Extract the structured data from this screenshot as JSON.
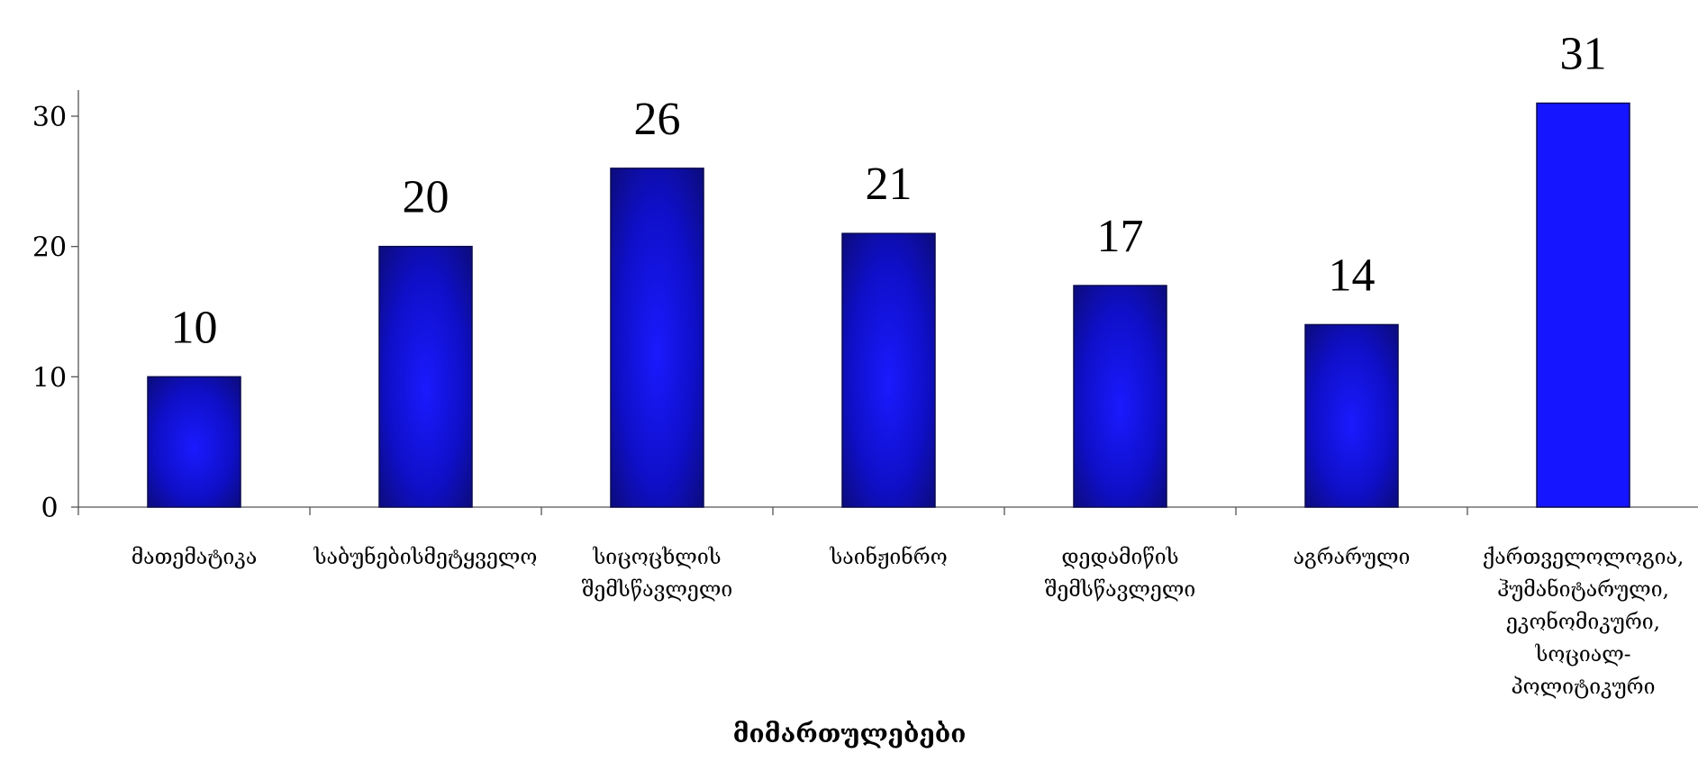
{
  "chart_data": {
    "type": "bar",
    "title": "",
    "xlabel": "მიმართულებები",
    "ylabel": "",
    "ylim": [
      0,
      30
    ],
    "yticks": [
      0,
      10,
      20,
      30
    ],
    "grid": false,
    "legend": "none",
    "categories": [
      [
        "მათემატიკა"
      ],
      [
        "საბუნებისმეტყველო"
      ],
      [
        "სიცოცხლის",
        "შემსწავლელი"
      ],
      [
        "საინჟინრო"
      ],
      [
        "დედამიწის",
        "შემსწავლელი"
      ],
      [
        "აგრარული"
      ],
      [
        "ქართველოლოგია,",
        "ჰუმანიტარული,",
        "ეკონომიკური,",
        "სოციალ-",
        "პოლიტიკური"
      ]
    ],
    "values": [
      10,
      20,
      26,
      21,
      17,
      14,
      31
    ],
    "data_labels": [
      "10",
      "20",
      "26",
      "21",
      "17",
      "14",
      "31"
    ],
    "colors": {
      "bar_edge": "#0a0a50",
      "bar_dark": "#0b0b78",
      "bar_light": "#1a1aff",
      "bar_last": "#1515ff",
      "axis": "#555555"
    }
  }
}
